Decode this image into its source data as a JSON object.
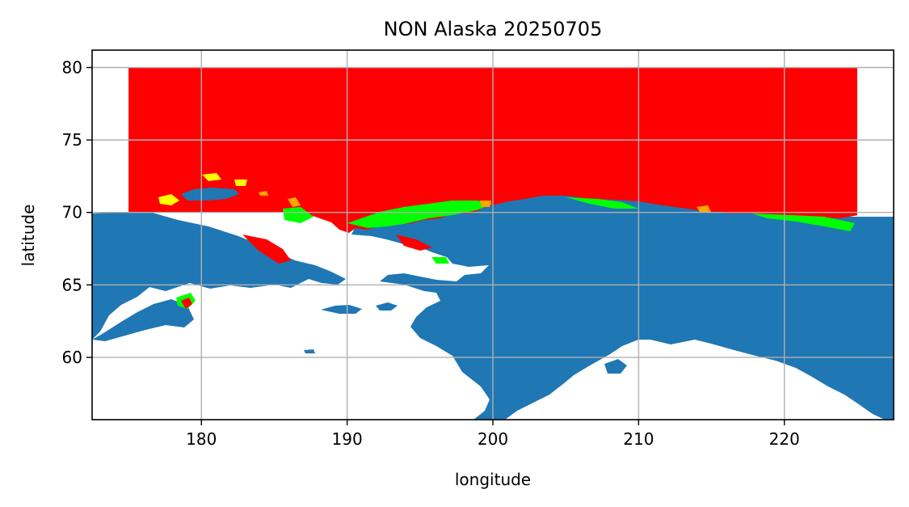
{
  "map": {
    "title": "NON Alaska 20250705",
    "xlabel": "longitude",
    "ylabel": "latitude",
    "xlim": [
      172.5,
      227.5
    ],
    "ylim": [
      55.7,
      81.2
    ],
    "x_ticks": [
      {
        "value": 180,
        "label": "180"
      },
      {
        "value": 190,
        "label": "190"
      },
      {
        "value": 200,
        "label": "200"
      },
      {
        "value": 210,
        "label": "210"
      },
      {
        "value": 220,
        "label": "220"
      }
    ],
    "y_ticks": [
      {
        "value": 60,
        "label": "60"
      },
      {
        "value": 65,
        "label": "65"
      },
      {
        "value": 70,
        "label": "70"
      },
      {
        "value": 75,
        "label": "75"
      },
      {
        "value": 80,
        "label": "80"
      }
    ],
    "grid": true,
    "data_extent": {
      "lon": [
        175,
        225
      ],
      "lat": [
        69.8,
        80
      ]
    },
    "colors": {
      "land": "#1f77b4",
      "ice_main": "#ff0000",
      "ice_edge": "#00ff00",
      "ice_low": "#ffff00",
      "ice_mid": "#ffa500",
      "ocean": "#ffffff",
      "grid": "#b0b0b0"
    }
  }
}
